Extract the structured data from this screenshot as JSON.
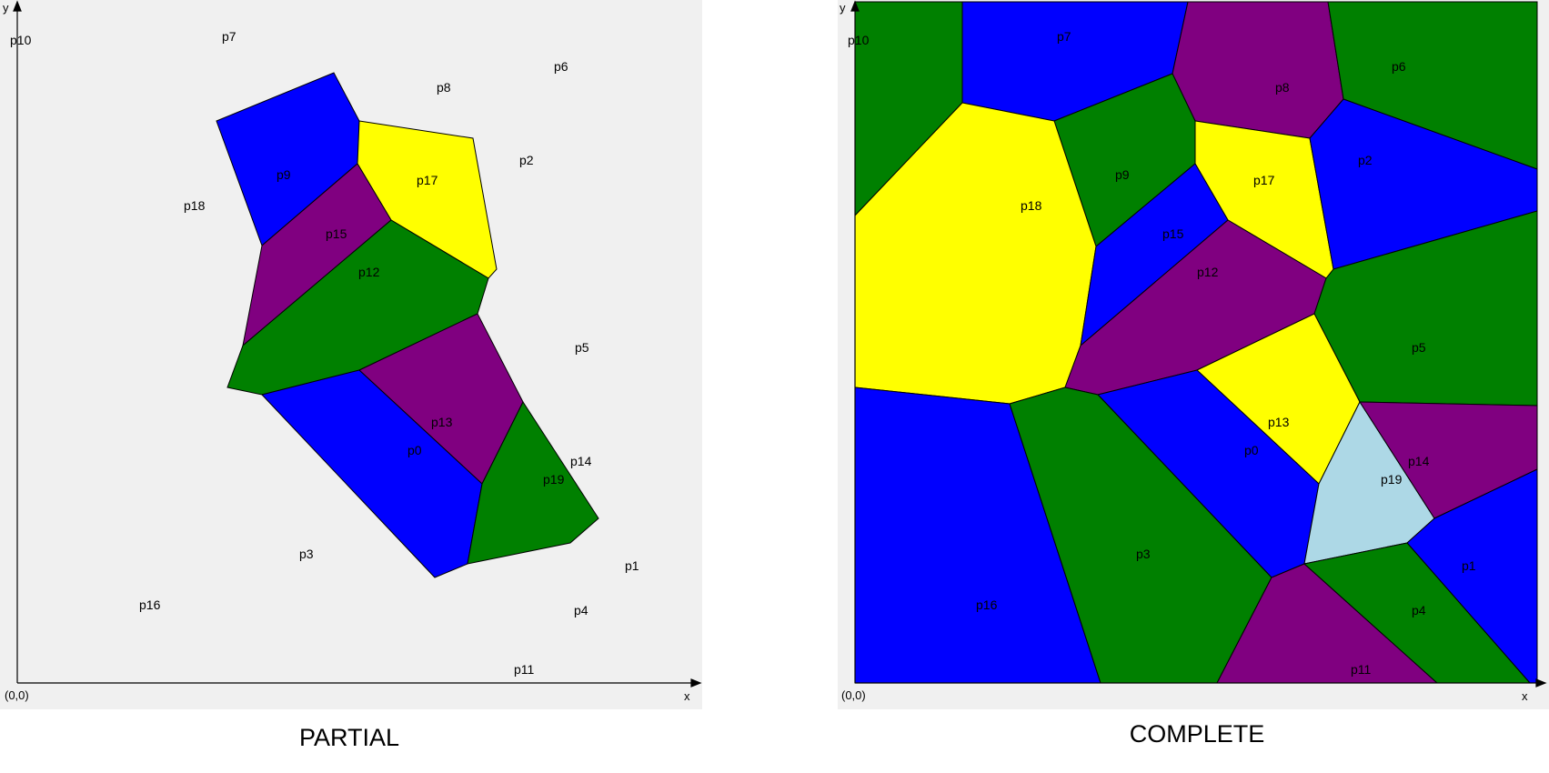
{
  "colors": {
    "panel_background": "#f0f0f0",
    "axis": "#000000",
    "green": "#008000",
    "blue": "#0000ff",
    "yellow": "#ffff00",
    "purple": "#800080",
    "lightblue": "#add8e6"
  },
  "axis_labels": {
    "y": "y",
    "x": "x",
    "origin": "(0,0)"
  },
  "panels": {
    "partial": {
      "caption": "PARTIAL",
      "points": [
        {
          "label": "p10"
        },
        {
          "label": "p7"
        },
        {
          "label": "p6"
        },
        {
          "label": "p8"
        },
        {
          "label": "p9"
        },
        {
          "label": "p17"
        },
        {
          "label": "p2"
        },
        {
          "label": "p18"
        },
        {
          "label": "p15"
        },
        {
          "label": "p12"
        },
        {
          "label": "p5"
        },
        {
          "label": "p13"
        },
        {
          "label": "p0"
        },
        {
          "label": "p14"
        },
        {
          "label": "p19"
        },
        {
          "label": "p3"
        },
        {
          "label": "p1"
        },
        {
          "label": "p16"
        },
        {
          "label": "p4"
        },
        {
          "label": "p11"
        }
      ]
    },
    "complete": {
      "caption": "COMPLETE",
      "points": [
        {
          "label": "p10"
        },
        {
          "label": "p7"
        },
        {
          "label": "p8"
        },
        {
          "label": "p6"
        },
        {
          "label": "p9"
        },
        {
          "label": "p17"
        },
        {
          "label": "p2"
        },
        {
          "label": "p18"
        },
        {
          "label": "p15"
        },
        {
          "label": "p12"
        },
        {
          "label": "p5"
        },
        {
          "label": "p13"
        },
        {
          "label": "p0"
        },
        {
          "label": "p14"
        },
        {
          "label": "p19"
        },
        {
          "label": "p3"
        },
        {
          "label": "p1"
        },
        {
          "label": "p16"
        },
        {
          "label": "p4"
        },
        {
          "label": "p11"
        }
      ]
    }
  }
}
